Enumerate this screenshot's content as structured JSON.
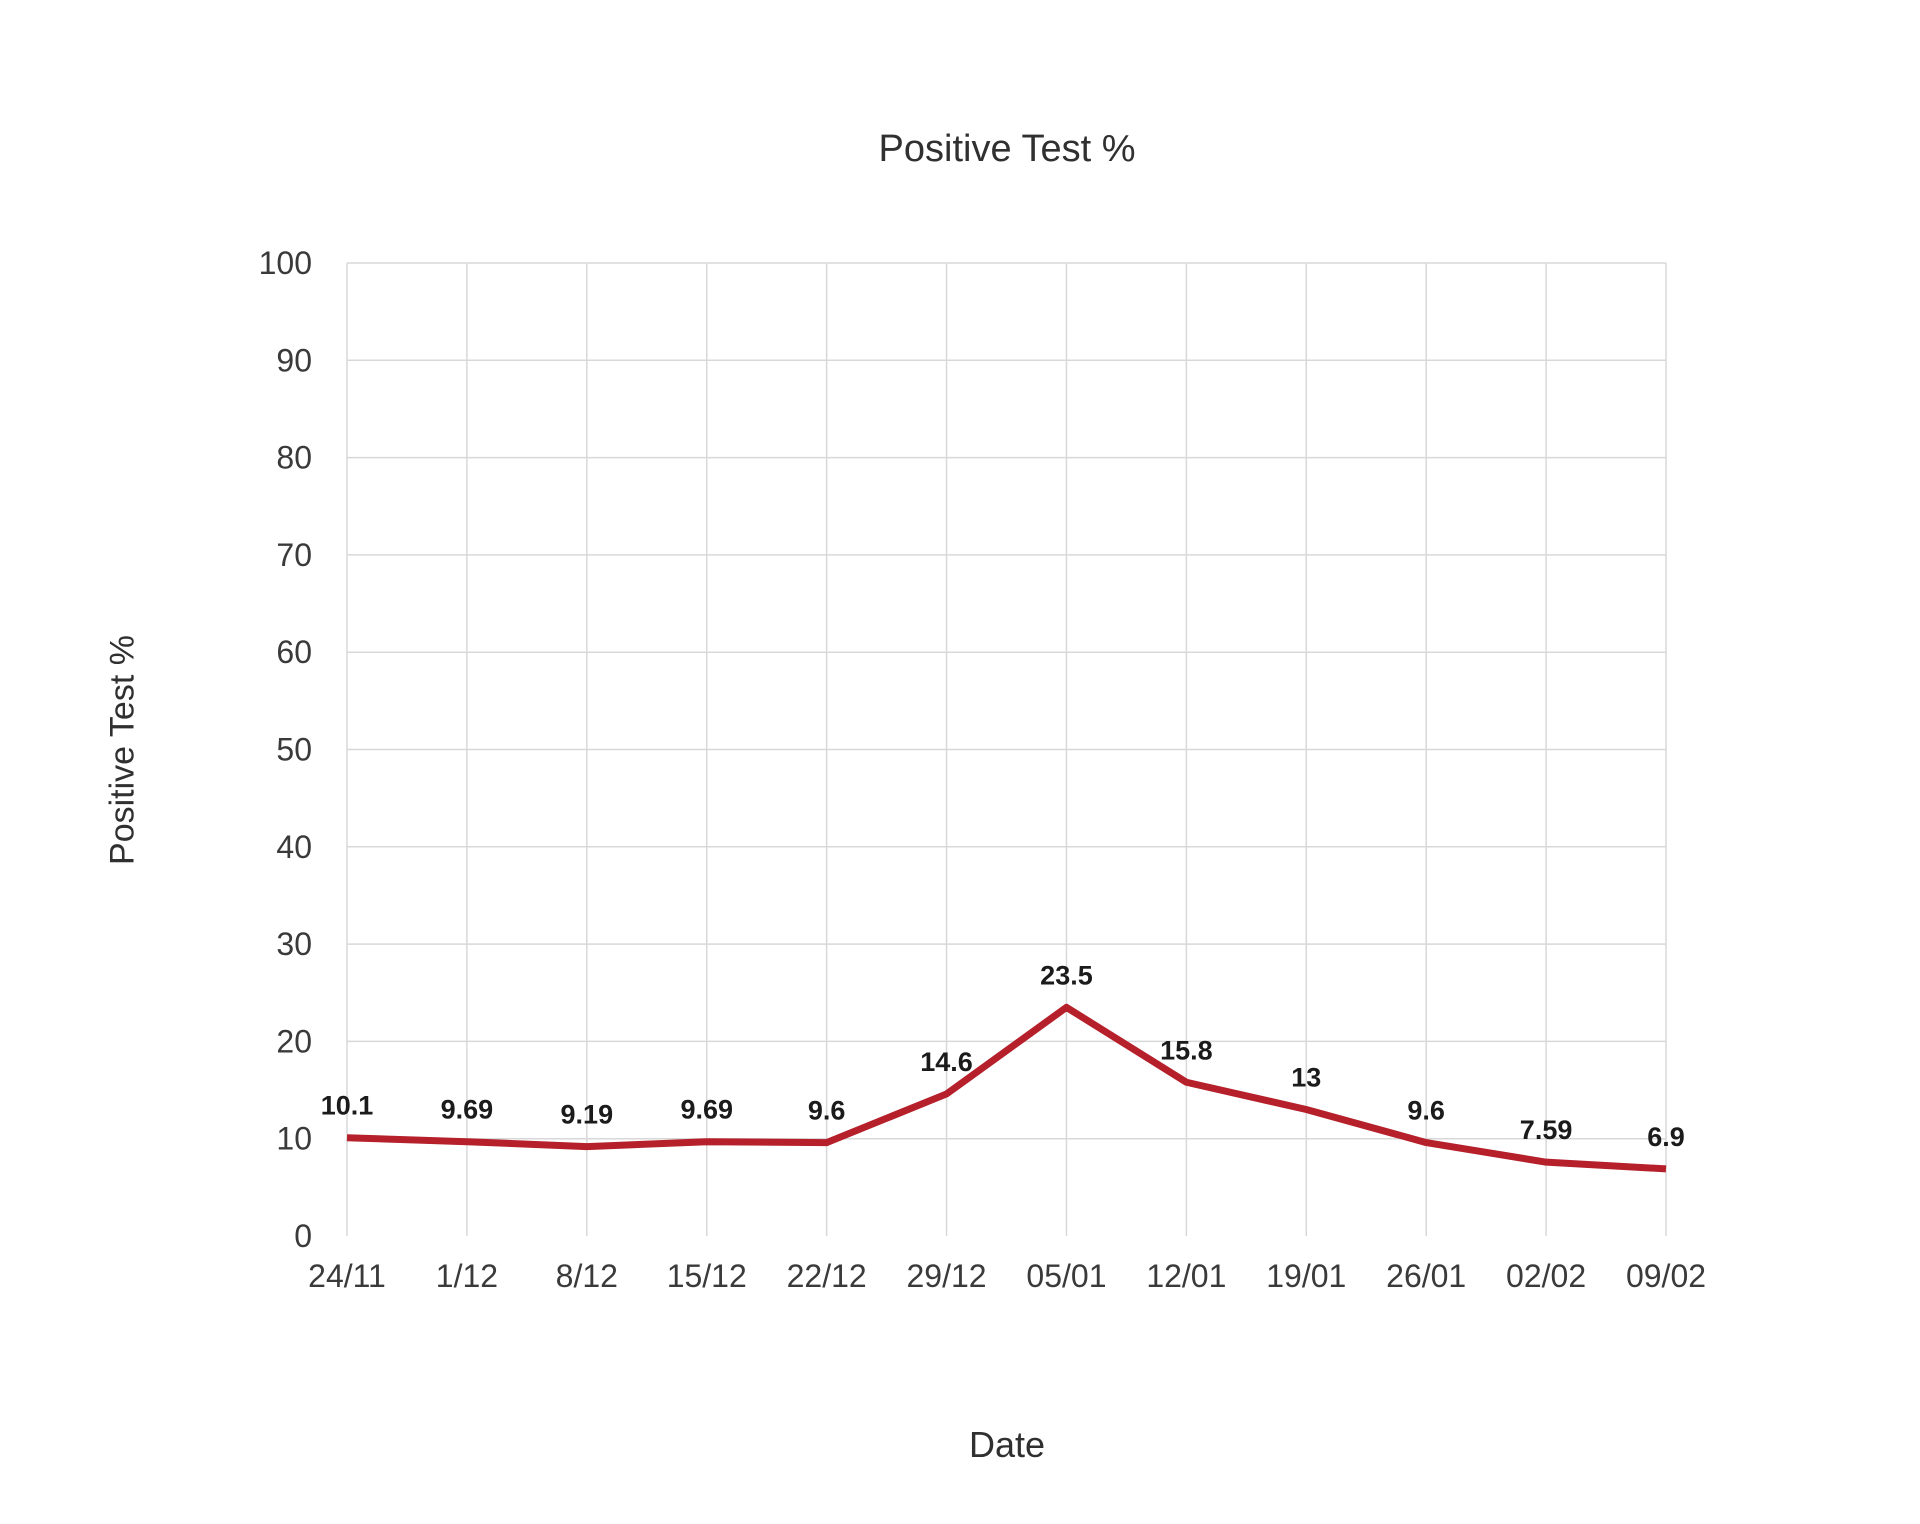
{
  "chart_data": {
    "type": "line",
    "title": "Positive Test %",
    "xlabel": "Date",
    "ylabel": "Positive Test %",
    "categories": [
      "24/11",
      "1/12",
      "8/12",
      "15/12",
      "22/12",
      "29/12",
      "05/01",
      "12/01",
      "19/01",
      "26/01",
      "02/02",
      "09/02"
    ],
    "series": [
      {
        "name": "Positive Test %",
        "values": [
          10.1,
          9.69,
          9.19,
          9.69,
          9.6,
          14.6,
          23.5,
          15.8,
          13,
          9.6,
          7.59,
          6.9
        ],
        "data_labels": [
          "10.1",
          "9.69",
          "9.19",
          "9.69",
          "9.6",
          "14.6",
          "23.5",
          "15.8",
          "13",
          "9.6",
          "7.59",
          "6.9"
        ]
      }
    ],
    "ylim": [
      0,
      100
    ],
    "ytick_step": 10,
    "ytick_labels": [
      "0",
      "10",
      "20",
      "30",
      "40",
      "50",
      "60",
      "70",
      "80",
      "90",
      "100"
    ],
    "grid": "full, no gridline at 0",
    "legend": "none",
    "colors": {
      "line": "#b5202a",
      "grid": "#d8d8d8",
      "tick_text": "#3a3a3a",
      "data_label_text": "#1b1b1b",
      "title_text": "#303030",
      "background": "#ffffff"
    }
  }
}
